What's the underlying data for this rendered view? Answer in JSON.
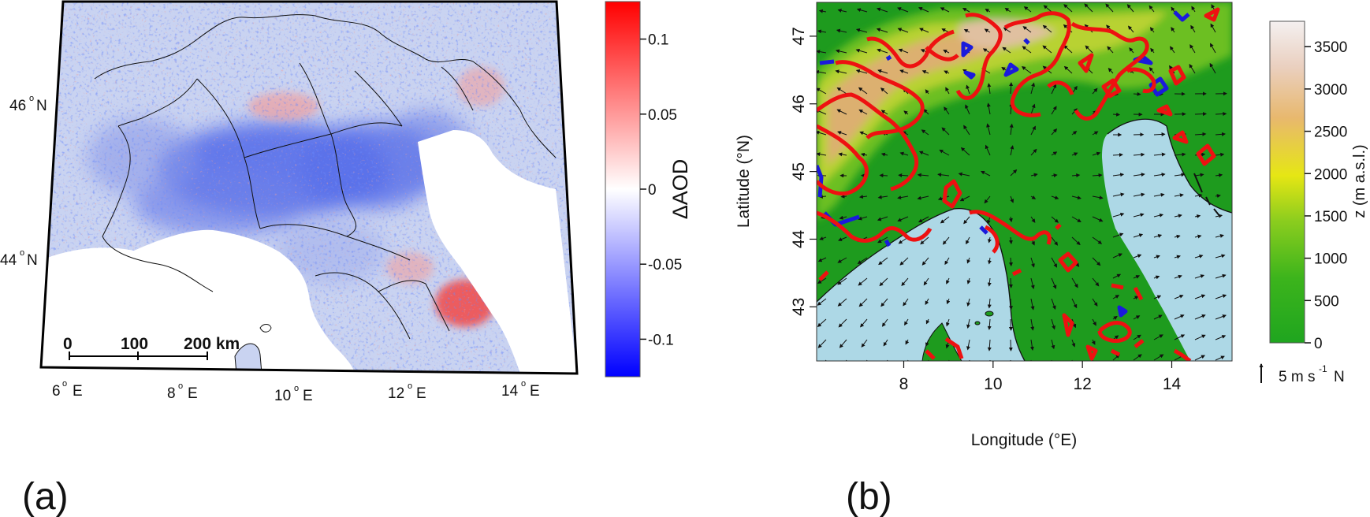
{
  "panel_a": {
    "label": "(a)",
    "colorbar": {
      "title": "ΔAOD",
      "ticks": [
        "0.1",
        "0.05",
        "0",
        "-0.05",
        "-0.1"
      ],
      "tick_values": [
        0.1,
        0.05,
        0,
        -0.05,
        -0.1
      ],
      "range": [
        -0.125,
        0.125
      ],
      "colors": {
        "high": "#ff0000",
        "mid": "#ffffff",
        "low": "#0000ff"
      }
    },
    "lat_labels": [
      {
        "deg": "46",
        "hemi": "N"
      },
      {
        "deg": "44",
        "hemi": "N"
      }
    ],
    "lon_labels": [
      {
        "deg": "6",
        "hemi": "E"
      },
      {
        "deg": "8",
        "hemi": "E"
      },
      {
        "deg": "10",
        "hemi": "E"
      },
      {
        "deg": "12",
        "hemi": "E"
      },
      {
        "deg": "14",
        "hemi": "E"
      }
    ],
    "scalebar": {
      "ticks": [
        "0",
        "100",
        "200 km"
      ]
    }
  },
  "panel_b": {
    "label": "(b)",
    "xlabel": "Longitude (°E)",
    "ylabel": "Latitude (°N)",
    "xticks": [
      "8",
      "10",
      "12",
      "14"
    ],
    "xtick_values": [
      8,
      10,
      12,
      14
    ],
    "yticks": [
      "47",
      "46",
      "45",
      "44",
      "43"
    ],
    "ytick_values": [
      47,
      46,
      45,
      44,
      43
    ],
    "xlim": [
      6.05,
      15.35
    ],
    "ylim": [
      42.2,
      47.5
    ],
    "colorbar": {
      "title": "z (m a.s.l.)",
      "ticks": [
        "3500",
        "3000",
        "2500",
        "2000",
        "1500",
        "1000",
        "500",
        "0"
      ],
      "tick_values": [
        3500,
        3000,
        2500,
        2000,
        1500,
        1000,
        500,
        0
      ],
      "range": [
        0,
        3800
      ],
      "colors": [
        "#1fa51f",
        "#3cb41c",
        "#8ccd1e",
        "#e6e614",
        "#e8b86e",
        "#ead0c0",
        "#f4f0f0"
      ]
    },
    "wind_legend": {
      "text": "5 m s",
      "exp": "-1",
      "suffix": "N"
    },
    "colors": {
      "sea": "#add8e6",
      "land": "#1e9b1e",
      "red_contour": "#ee1111",
      "blue_contour": "#1a1adc"
    }
  }
}
